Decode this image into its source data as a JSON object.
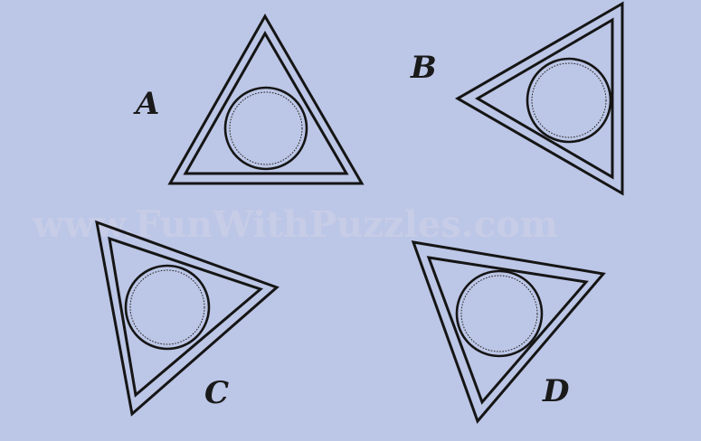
{
  "options": [
    {
      "id": "A",
      "label": "A"
    },
    {
      "id": "B",
      "label": "B"
    },
    {
      "id": "C",
      "label": "C"
    },
    {
      "id": "D",
      "label": "D"
    }
  ],
  "watermark": "www.FunWithPuzzles.com",
  "colors": {
    "background": "#bcc6e6",
    "ink": "#151515",
    "watermark": "#c9cfe8"
  }
}
